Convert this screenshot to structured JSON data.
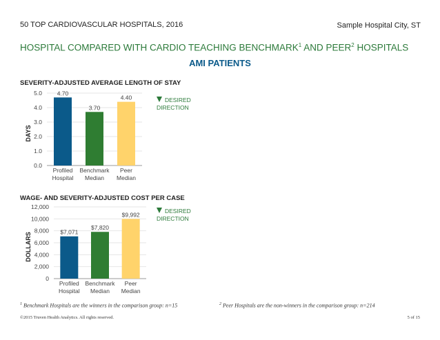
{
  "header": {
    "left": "50 TOP CARDIOVASCULAR HOSPITALS, 2016",
    "right": "Sample Hospital City, ST"
  },
  "title": {
    "part1": "HOSPITAL COMPARED WITH CARDIO TEACHING BENCHMARK",
    "sup1": "1",
    "part2": " AND PEER",
    "sup2": "2",
    "part3": " HOSPITALS"
  },
  "subtitle": "AMI PATIENTS",
  "legend": {
    "desired_direction": "DESIRED DIRECTION",
    "arrow_icon": "down-triangle-icon",
    "arrow_color": "#2c7a3a"
  },
  "colors": {
    "profiled": "#0b5a8a",
    "benchmark": "#2f7d32",
    "peer": "#ffd36b",
    "title_green": "#2c7a3a",
    "subtitle_blue": "#0b5a8a"
  },
  "chart_data": [
    {
      "type": "bar",
      "title": "SEVERITY-ADJUSTED AVERAGE LENGTH OF STAY",
      "ylabel": "DAYS",
      "categories": [
        [
          "Profiled",
          "Hospital"
        ],
        [
          "Benchmark",
          "Median"
        ],
        [
          "Peer",
          "Median"
        ]
      ],
      "values": [
        4.7,
        3.7,
        4.4
      ],
      "value_labels": [
        "4.70",
        "3.70",
        "4.40"
      ],
      "ylim": [
        0,
        5
      ],
      "yticks": [
        "0.0",
        "1.0",
        "2.0",
        "3.0",
        "4.0",
        "5.0"
      ],
      "grid": true,
      "desired_direction": "down"
    },
    {
      "type": "bar",
      "title": "WAGE- AND SEVERITY-ADJUSTED COST PER CASE",
      "ylabel": "DOLLARS",
      "categories": [
        [
          "Profiled",
          "Hospital"
        ],
        [
          "Benchmark",
          "Median"
        ],
        [
          "Peer",
          "Median"
        ]
      ],
      "values": [
        7071,
        7820,
        9992
      ],
      "value_labels": [
        "$7,071",
        "$7,820",
        "$9,992"
      ],
      "ylim": [
        0,
        12000
      ],
      "yticks": [
        "0",
        "2,000",
        "4,000",
        "6,000",
        "8,000",
        "10,000",
        "12,000"
      ],
      "grid": true,
      "desired_direction": "down"
    }
  ],
  "footnotes": {
    "fn1_num": "1",
    "fn1_text": " Benchmark Hospitals are the winners in the comparison group: n=15",
    "fn2_num": "2",
    "fn2_text": " Peer Hospitals are the non-winners in the comparison group: n=214"
  },
  "footer": {
    "copyright": "©2015 Truven Health Analytics. All rights reserved.",
    "page": "5 of 15"
  }
}
